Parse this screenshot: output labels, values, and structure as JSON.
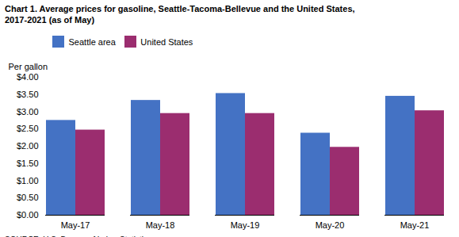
{
  "chart_data": {
    "type": "bar",
    "title": "Chart 1. Average prices for gasoline, Seattle-Tacoma-Bellevue and the United States,\n2017-2021  (as of May)",
    "ylabel": "Per gallon",
    "source": "SOURCE: U.S. Bureau of Labor Statistics.",
    "categories": [
      "May-17",
      "May-18",
      "May-19",
      "May-20",
      "May-21"
    ],
    "series": [
      {
        "name": "Seattle area",
        "color": "#4472C4",
        "values": [
          2.75,
          3.33,
          3.53,
          2.38,
          3.45
        ]
      },
      {
        "name": "United States",
        "color": "#9B2D6F",
        "values": [
          2.47,
          2.95,
          2.95,
          1.97,
          3.03
        ]
      }
    ],
    "ylim": [
      0,
      4.0
    ],
    "yticks": [
      {
        "value": 0.0,
        "label": "$0.00"
      },
      {
        "value": 0.5,
        "label": "$0.50"
      },
      {
        "value": 1.0,
        "label": "$1.00"
      },
      {
        "value": 1.5,
        "label": "$1.50"
      },
      {
        "value": 2.0,
        "label": "$2.00"
      },
      {
        "value": 2.5,
        "label": "$2.50"
      },
      {
        "value": 3.0,
        "label": "$3.00"
      },
      {
        "value": 3.5,
        "label": "$3.50"
      },
      {
        "value": 4.0,
        "label": "$4.00"
      }
    ],
    "legend": "upper left",
    "grid": false
  }
}
